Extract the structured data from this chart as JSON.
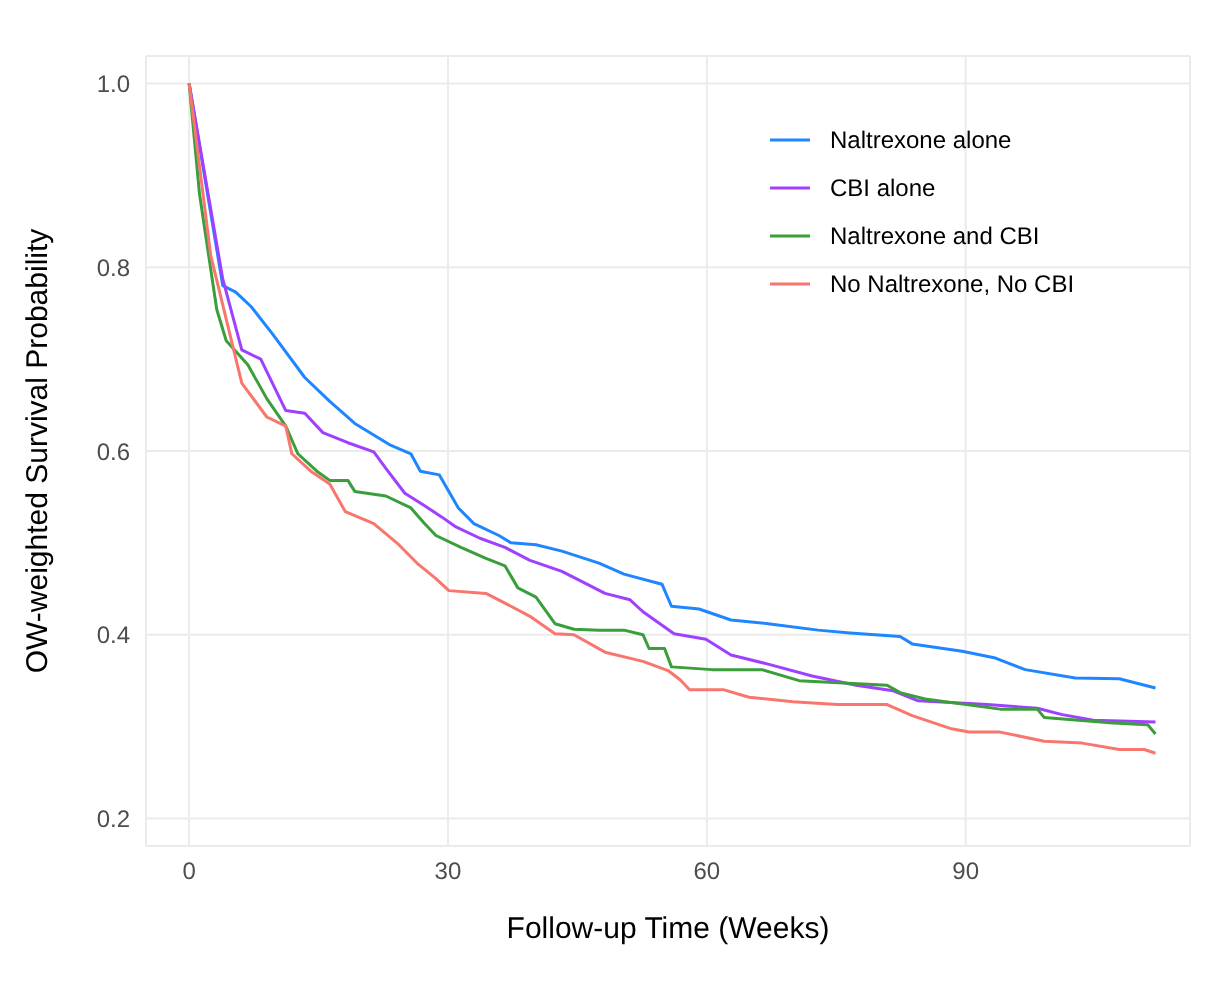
{
  "chart_data": {
    "type": "line",
    "xlabel": "Follow-up Time (Weeks)",
    "ylabel": "OW-weighted Survival Probability",
    "xlim": [
      -5,
      116
    ],
    "xticks": [
      0,
      30,
      60,
      90
    ],
    "ylim": [
      0.17,
      1.03
    ],
    "yticks": [
      0.2,
      0.4,
      0.6,
      0.8,
      {
        "value": 1,
        "label": "1.0"
      }
    ],
    "grid": true,
    "legend": "top right",
    "line_style": "solid",
    "marker": "none",
    "series": [
      {
        "name": "Naltrexone alone",
        "color": "#1f86ff",
        "x": [
          0,
          3.9,
          5.4,
          7.2,
          9.7,
          13.4,
          16.3,
          19.2,
          23.2,
          25.7,
          26.8,
          29,
          31.2,
          33,
          35.9,
          37.3,
          40.2,
          43.2,
          47.5,
          50.4,
          54.8,
          55.9,
          59.1,
          62.8,
          67.1,
          72.9,
          76.6,
          82.4,
          83.8,
          89.6,
          93.3,
          96.9,
          102.7,
          107.8,
          112
        ],
        "values": [
          1.0,
          0.78,
          0.773,
          0.757,
          0.727,
          0.68,
          0.654,
          0.63,
          0.607,
          0.597,
          0.578,
          0.574,
          0.538,
          0.521,
          0.508,
          0.5,
          0.498,
          0.491,
          0.478,
          0.466,
          0.455,
          0.431,
          0.428,
          0.416,
          0.412,
          0.405,
          0.402,
          0.398,
          0.39,
          0.382,
          0.375,
          0.362,
          0.353,
          0.352,
          0.342
        ]
      },
      {
        "name": "CBI alone",
        "color": "#a040ff",
        "x": [
          0,
          3.9,
          6.1,
          8.3,
          11.2,
          13.4,
          15.5,
          18.4,
          21.4,
          22.8,
          25,
          27.2,
          29.3,
          30.8,
          33.7,
          36.6,
          39.5,
          43.2,
          48.2,
          51.1,
          52.6,
          56.2,
          59.9,
          62.8,
          67.1,
          72.2,
          77.3,
          81.6,
          84.5,
          92.5,
          98.3,
          101.2,
          104.8,
          112
        ],
        "values": [
          1.0,
          0.787,
          0.71,
          0.7,
          0.644,
          0.641,
          0.62,
          0.609,
          0.599,
          0.581,
          0.554,
          0.541,
          0.528,
          0.518,
          0.505,
          0.495,
          0.481,
          0.469,
          0.445,
          0.438,
          0.425,
          0.401,
          0.395,
          0.378,
          0.368,
          0.355,
          0.345,
          0.339,
          0.328,
          0.324,
          0.32,
          0.313,
          0.307,
          0.305
        ]
      },
      {
        "name": "Naltrexone and CBI",
        "color": "#3a9e3a",
        "x": [
          0,
          1.2,
          3.2,
          4.3,
          6.8,
          9,
          11.2,
          12.6,
          14.8,
          16.3,
          18.4,
          19.2,
          22.8,
          25.7,
          27.2,
          28.6,
          31.5,
          34.4,
          36.6,
          38.1,
          40.2,
          42.4,
          44.6,
          47.5,
          50.4,
          52.6,
          53.3,
          55.1,
          55.9,
          60.6,
          66.4,
          70.7,
          80.9,
          82.4,
          85.3,
          94,
          98.3,
          99.1,
          107.1,
          111.1,
          112
        ],
        "values": [
          1.0,
          0.88,
          0.754,
          0.72,
          0.694,
          0.657,
          0.627,
          0.597,
          0.578,
          0.568,
          0.568,
          0.556,
          0.551,
          0.538,
          0.522,
          0.508,
          0.495,
          0.483,
          0.475,
          0.451,
          0.441,
          0.412,
          0.406,
          0.405,
          0.405,
          0.4,
          0.385,
          0.385,
          0.365,
          0.362,
          0.362,
          0.35,
          0.345,
          0.337,
          0.33,
          0.319,
          0.319,
          0.31,
          0.304,
          0.302,
          0.292
        ]
      },
      {
        "name": "No Naltrexone, No CBI",
        "color": "#f8766d",
        "x": [
          0,
          2.5,
          6.1,
          9,
          11.2,
          11.9,
          14.1,
          16.3,
          18.1,
          21.4,
          24.3,
          26.4,
          28.6,
          30.1,
          34.4,
          37.3,
          39.5,
          42.4,
          44.6,
          48.2,
          52.6,
          55.5,
          56.9,
          58,
          62,
          64.9,
          70,
          75.1,
          80.9,
          83.8,
          88.2,
          90.4,
          94,
          99.1,
          103.5,
          107.8,
          110.7,
          112
        ],
        "values": [
          1.0,
          0.813,
          0.674,
          0.637,
          0.627,
          0.597,
          0.578,
          0.564,
          0.534,
          0.521,
          0.498,
          0.478,
          0.461,
          0.448,
          0.445,
          0.431,
          0.42,
          0.401,
          0.4,
          0.381,
          0.371,
          0.361,
          0.351,
          0.34,
          0.34,
          0.332,
          0.327,
          0.324,
          0.324,
          0.312,
          0.298,
          0.294,
          0.294,
          0.284,
          0.282,
          0.275,
          0.275,
          0.271
        ]
      }
    ]
  }
}
